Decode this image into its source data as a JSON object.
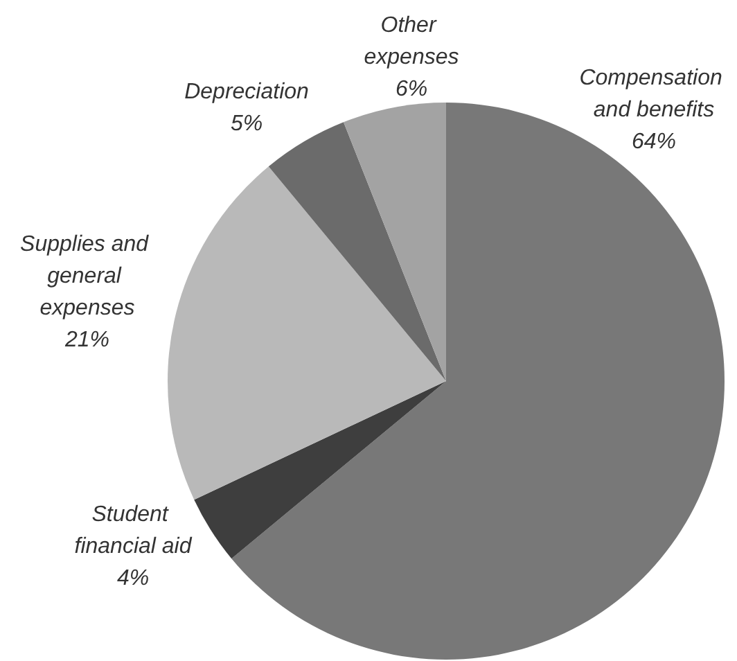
{
  "chart_data": {
    "type": "pie",
    "categories": [
      "Compensation and benefits",
      "Student financial aid",
      "Supplies and general expenses",
      "Depreciation",
      "Other expenses"
    ],
    "values": [
      64,
      4,
      21,
      5,
      6
    ],
    "value_labels": [
      "64%",
      "4%",
      "21%",
      "5%",
      "6%"
    ],
    "colors": [
      "#787878",
      "#3e3e3e",
      "#b9b9b9",
      "#6b6b6b",
      "#a3a3a3"
    ],
    "legend": false
  }
}
